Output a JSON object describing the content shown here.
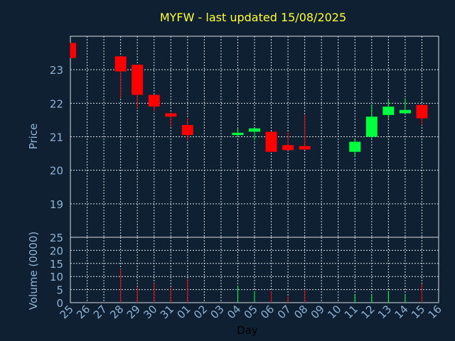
{
  "chart_data": {
    "type": "candlestick",
    "title": "MYFW - last updated 15/08/2025",
    "xlabel": "Day",
    "x_tick_labels": [
      "25",
      "26",
      "27",
      "28",
      "29",
      "30",
      "31",
      "01",
      "02",
      "03",
      "04",
      "05",
      "06",
      "07",
      "08",
      "09",
      "10",
      "11",
      "12",
      "13",
      "14",
      "15",
      "16"
    ],
    "price_panel": {
      "ylabel": "Price",
      "yticks": [
        "19",
        "20",
        "21",
        "22",
        "23"
      ],
      "ylim": [
        18.0,
        24.0
      ]
    },
    "volume_panel": {
      "ylabel": "Volume (0000)",
      "yticks": [
        "0",
        "5",
        "10",
        "15",
        "20",
        "25"
      ],
      "ylim": [
        0,
        25
      ]
    },
    "colors": {
      "up": "#00ff3c",
      "down": "#ff0000",
      "title": "#ffff33",
      "axis_text": "#8fb3d4",
      "background": "#0f2033"
    },
    "candles": [
      {
        "day": "25",
        "open": 23.8,
        "high": 23.8,
        "low": 23.35,
        "close": 23.35,
        "volume": 0
      },
      {
        "day": "28",
        "open": 23.4,
        "high": 23.4,
        "low": 22.15,
        "close": 22.95,
        "volume": 13
      },
      {
        "day": "29",
        "open": 23.15,
        "high": 23.15,
        "low": 21.85,
        "close": 22.25,
        "volume": 6
      },
      {
        "day": "30",
        "open": 22.25,
        "high": 22.25,
        "low": 21.75,
        "close": 21.9,
        "volume": 7.5
      },
      {
        "day": "31",
        "open": 21.7,
        "high": 21.7,
        "low": 21.3,
        "close": 21.6,
        "volume": 6
      },
      {
        "day": "01",
        "open": 21.35,
        "high": 21.55,
        "low": 20.9,
        "close": 21.05,
        "volume": 9
      },
      {
        "day": "04",
        "open": 21.05,
        "high": 21.25,
        "low": 21.0,
        "close": 21.12,
        "volume": 6.5
      },
      {
        "day": "05",
        "open": 21.15,
        "high": 21.25,
        "low": 20.9,
        "close": 21.25,
        "volume": 4.5
      },
      {
        "day": "06",
        "open": 21.15,
        "high": 21.15,
        "low": 20.55,
        "close": 20.55,
        "volume": 4.5
      },
      {
        "day": "07",
        "open": 20.75,
        "high": 21.15,
        "low": 20.6,
        "close": 20.6,
        "volume": 2.5
      },
      {
        "day": "08",
        "open": 20.72,
        "high": 21.65,
        "low": 20.6,
        "close": 20.62,
        "volume": 5
      },
      {
        "day": "11",
        "open": 20.55,
        "high": 20.95,
        "low": 20.4,
        "close": 20.85,
        "volume": 3
      },
      {
        "day": "12",
        "open": 21.0,
        "high": 21.95,
        "low": 20.95,
        "close": 21.6,
        "volume": 3
      },
      {
        "day": "13",
        "open": 21.65,
        "high": 22.1,
        "low": 21.55,
        "close": 21.9,
        "volume": 4.5
      },
      {
        "day": "14",
        "open": 21.7,
        "high": 22.15,
        "low": 21.7,
        "close": 21.8,
        "volume": 3
      },
      {
        "day": "15",
        "open": 21.95,
        "high": 21.95,
        "low": 21.35,
        "close": 21.55,
        "volume": 7
      }
    ]
  }
}
